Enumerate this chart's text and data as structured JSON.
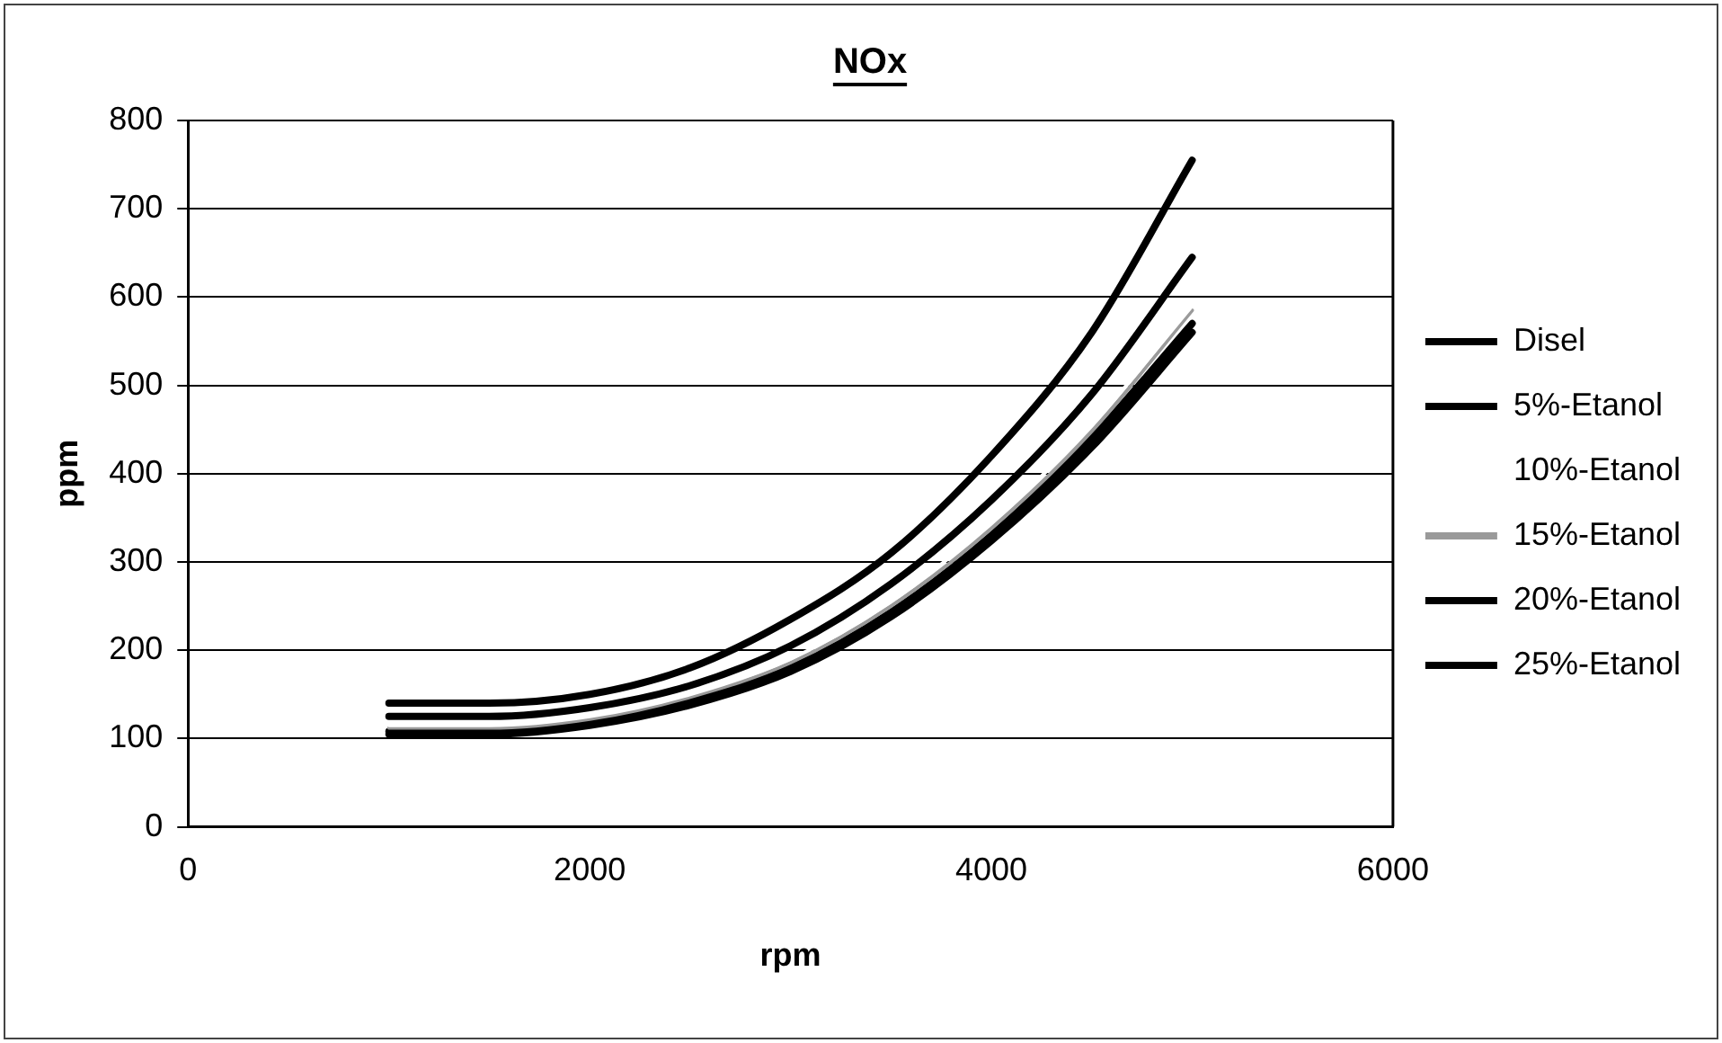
{
  "chart_data": {
    "type": "line",
    "title": "NOx",
    "xlabel": "rpm",
    "ylabel": "ppm",
    "xlim": [
      0,
      6000
    ],
    "xticks": [
      0,
      2000,
      4000,
      6000
    ],
    "ylim": [
      0,
      800
    ],
    "yticks": [
      0,
      100,
      200,
      300,
      400,
      500,
      600,
      700,
      800
    ],
    "grid": "y",
    "legend": "right",
    "marker": "none",
    "line_style": "solid",
    "x": [
      1000,
      1500,
      2000,
      2500,
      3000,
      3500,
      4000,
      4500,
      5000
    ],
    "series": [
      {
        "name": "Disel",
        "color": "#000000",
        "values": [
          140,
          140,
          150,
          180,
          235,
          310,
          420,
          560,
          755
        ]
      },
      {
        "name": "5%-Etanol",
        "color": "#000000",
        "values": [
          125,
          125,
          135,
          160,
          205,
          275,
          370,
          490,
          645
        ]
      },
      {
        "name": "10%-Etanol",
        "color": "#ffffff",
        "values": [
          115,
          115,
          125,
          150,
          190,
          255,
          345,
          455,
          590
        ]
      },
      {
        "name": "15%-Etanol",
        "color": "#9a9a9a",
        "values": [
          112,
          112,
          122,
          147,
          186,
          250,
          338,
          448,
          585
        ]
      },
      {
        "name": "20%-Etanol",
        "color": "#000000",
        "values": [
          108,
          108,
          118,
          142,
          180,
          243,
          330,
          440,
          570
        ]
      },
      {
        "name": "25%-Etanol",
        "color": "#000000",
        "values": [
          105,
          105,
          115,
          138,
          176,
          238,
          324,
          430,
          560
        ]
      }
    ]
  }
}
